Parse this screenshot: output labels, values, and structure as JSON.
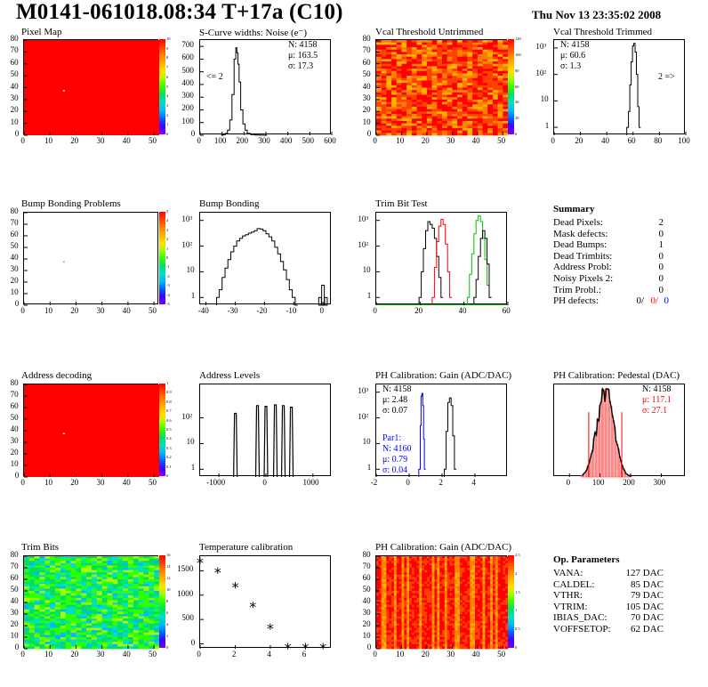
{
  "header": {
    "title": "M0141-061018.08:34 T+17a (C10)",
    "date": "Thu Nov 13 23:35:02 2008"
  },
  "colors": {
    "red": "#ff0000",
    "blue": "#0000ff",
    "green": "#00c000",
    "black": "#000000"
  },
  "palette": [
    "#7a00ff",
    "#4000ff",
    "#0060ff",
    "#00b8ff",
    "#00e0c0",
    "#00e060",
    "#30ff00",
    "#a0ff00",
    "#ffe000",
    "#ffb000",
    "#ff8000",
    "#ff4000",
    "#ff0000"
  ],
  "colorbar_labels": {
    "pixel_map": [
      "10",
      "9",
      "8",
      "7",
      "6",
      "5",
      "4",
      "3",
      "2",
      "1",
      "0"
    ],
    "vcal_untrimmed": [
      "120",
      "100",
      "80",
      "60",
      "40",
      "20",
      "0"
    ],
    "bump_bonding": [
      "5",
      "4",
      "3",
      "2",
      "1",
      "0",
      "-1",
      "-2",
      "-3",
      "-4",
      "-5"
    ],
    "address_decoding": [
      "1",
      "0.9",
      "0.8",
      "0.7",
      "0.6",
      "0.5",
      "0.4",
      "0.3",
      "0.2",
      "0.1",
      "0"
    ],
    "trim_bits": [
      "16",
      "14",
      "12",
      "10",
      "8",
      "6",
      "4",
      "2",
      "0"
    ],
    "ph_gain_map": [
      "2.5",
      "2",
      "1.5",
      "1",
      "0.5",
      "0"
    ]
  },
  "chart_data": [
    {
      "id": "pixel_map",
      "type": "heatmap",
      "title": "Pixel Map",
      "xlim": [
        0,
        52
      ],
      "ylim": [
        0,
        80
      ],
      "xticks": [
        "0",
        "10",
        "20",
        "30",
        "40",
        "50"
      ],
      "yticks": [
        "0",
        "10",
        "20",
        "30",
        "40",
        "50",
        "60",
        "70",
        "80"
      ],
      "fill": "#ff0000",
      "defect_pixel": [
        15,
        38
      ]
    },
    {
      "id": "scurve",
      "type": "line",
      "title": "S-Curve widths: Noise (e⁻)",
      "xlim": [
        0,
        600
      ],
      "ylim": [
        0,
        750
      ],
      "xticks": [
        "0",
        "100",
        "200",
        "300",
        "400",
        "500",
        "600"
      ],
      "yticks": [
        "0",
        "100",
        "200",
        "300",
        "400",
        "500",
        "600",
        "700"
      ],
      "stats": {
        "N": "N: 4158",
        "mu": "μ: 163.5",
        "sigma": "σ: 17.3"
      },
      "annotation": "<= 2",
      "x": [
        100,
        110,
        120,
        130,
        140,
        150,
        160,
        165,
        170,
        175,
        180,
        190,
        200,
        210,
        220,
        240,
        260,
        280,
        300
      ],
      "y": [
        0,
        5,
        15,
        40,
        120,
        320,
        600,
        690,
        650,
        560,
        420,
        200,
        90,
        40,
        15,
        5,
        2,
        1,
        0
      ]
    },
    {
      "id": "vcal_untrimmed",
      "type": "heatmap",
      "title": "Vcal Threshold Untrimmed",
      "xlim": [
        0,
        52
      ],
      "ylim": [
        0,
        80
      ],
      "xticks": [
        "0",
        "10",
        "20",
        "30",
        "40",
        "50"
      ],
      "yticks": [
        "0",
        "10",
        "20",
        "30",
        "40",
        "50",
        "60",
        "70",
        "80"
      ]
    },
    {
      "id": "vcal_trimmed",
      "type": "line",
      "title": "Vcal Threshold Trimmed",
      "xlim": [
        0,
        100
      ],
      "ylim": [
        0.5,
        2000
      ],
      "log_y": true,
      "xticks": [
        "0",
        "20",
        "40",
        "60",
        "80",
        "100"
      ],
      "yticks": [
        "1",
        "10",
        "10²",
        "10³"
      ],
      "stats": {
        "N": "N: 4158",
        "mu": "μ: 60.6",
        "sigma": "σ:  1.3"
      },
      "annotation": "2 =>",
      "x": [
        56,
        57,
        58,
        59,
        60,
        61,
        62,
        63,
        64,
        65
      ],
      "y": [
        1,
        4,
        40,
        300,
        1200,
        1500,
        700,
        100,
        6,
        1
      ]
    },
    {
      "id": "bump_map",
      "type": "heatmap",
      "title": "Bump Bonding Problems",
      "xlim": [
        0,
        52
      ],
      "ylim": [
        0,
        80
      ],
      "xticks": [
        "0",
        "10",
        "20",
        "30",
        "40",
        "50"
      ],
      "yticks": [
        "0",
        "10",
        "20",
        "30",
        "40",
        "50",
        "60",
        "70",
        "80"
      ],
      "defect_pixel": [
        15,
        38
      ]
    },
    {
      "id": "bump_bonding",
      "type": "line",
      "title": "Bump Bonding",
      "xlim": [
        -42,
        3
      ],
      "ylim": [
        0.5,
        2000
      ],
      "log_y": true,
      "xticks": [
        "-40",
        "-30",
        "-20",
        "-10",
        "0"
      ],
      "yticks": [
        "1",
        "10",
        "10²",
        "10³"
      ],
      "x": [
        -36,
        -35,
        -34,
        -33,
        -32,
        -31,
        -30,
        -29,
        -28,
        -27,
        -26,
        -25,
        -24,
        -23,
        -22,
        -21,
        -20,
        -19,
        -18,
        -17,
        -16,
        -15,
        -14,
        -13,
        -12,
        -11,
        -10,
        -9
      ],
      "y": [
        1,
        2,
        6,
        14,
        30,
        60,
        100,
        160,
        200,
        250,
        280,
        320,
        350,
        400,
        480,
        460,
        400,
        300,
        230,
        160,
        90,
        50,
        25,
        12,
        5,
        2,
        1,
        0
      ],
      "extra_bins": [
        {
          "x": -1,
          "y": 1
        },
        {
          "x": 0,
          "y": 3
        },
        {
          "x": 1,
          "y": 1
        }
      ]
    },
    {
      "id": "trim_bit_test",
      "type": "line",
      "title": "Trim Bit Test",
      "xlim": [
        0,
        60
      ],
      "ylim": [
        0.5,
        2000
      ],
      "log_y": true,
      "xticks": [
        "0",
        "20",
        "40",
        "60"
      ],
      "yticks": [
        "1",
        "10",
        "10²",
        "10³"
      ],
      "series": [
        {
          "color": "#000000",
          "x": [
            20,
            21,
            22,
            23,
            24,
            25,
            26,
            27,
            28,
            29,
            30
          ],
          "y": [
            1,
            10,
            80,
            400,
            900,
            700,
            500,
            200,
            40,
            6,
            1
          ]
        },
        {
          "color": "#ff0000",
          "x": [
            26,
            27,
            28,
            29,
            30,
            31,
            32,
            33,
            34
          ],
          "y": [
            1,
            15,
            150,
            600,
            1100,
            700,
            120,
            10,
            1
          ]
        },
        {
          "color": "#00c000",
          "x": [
            42,
            43,
            44,
            45,
            46,
            47,
            48,
            49,
            50,
            51,
            52
          ],
          "y": [
            1,
            8,
            50,
            300,
            1000,
            1500,
            900,
            200,
            30,
            3,
            1
          ]
        },
        {
          "color": "#000000",
          "x": [
            45,
            46,
            47,
            48,
            49,
            50,
            51,
            52
          ],
          "y": [
            1,
            5,
            40,
            200,
            400,
            200,
            20,
            1
          ]
        }
      ]
    },
    {
      "id": "address_decoding",
      "type": "heatmap",
      "title": "Address decoding",
      "xlim": [
        0,
        52
      ],
      "ylim": [
        0,
        80
      ],
      "xticks": [
        "0",
        "10",
        "20",
        "30",
        "40",
        "50"
      ],
      "yticks": [
        "0",
        "10",
        "20",
        "30",
        "40",
        "50",
        "60",
        "70",
        "80"
      ],
      "fill": "#ff0000",
      "defect_pixel": [
        15,
        38
      ]
    },
    {
      "id": "address_levels",
      "type": "line",
      "title": "Address Levels",
      "xlim": [
        -1400,
        1400
      ],
      "ylim": [
        0.5,
        2000
      ],
      "log_y": true,
      "xticks": [
        "-1000",
        "0",
        "1000"
      ],
      "yticks": [
        "1",
        "10",
        "10²"
      ],
      "peaks": [
        -650,
        -180,
        0,
        200,
        370,
        540
      ],
      "peak_heights": [
        150,
        300,
        280,
        320,
        300,
        260
      ]
    },
    {
      "id": "ph_gain",
      "type": "line",
      "title": "PH Calibration: Gain (ADC/DAC)",
      "xlim": [
        -2,
        6
      ],
      "ylim": [
        0.5,
        2000
      ],
      "log_y": true,
      "xticks": [
        "-2",
        "0",
        "2",
        "4"
      ],
      "yticks": [
        "1",
        "10",
        "10²",
        "10³"
      ],
      "stats": {
        "N": "N: 4158",
        "mu": "μ: 2.48",
        "sigma": "σ: 0.07"
      },
      "stats2": {
        "name": "Par1:",
        "N": "N: 4160",
        "mu": "μ: 0.79",
        "sigma": "σ: 0.04"
      },
      "series": [
        {
          "color": "#000000",
          "x": [
            2.2,
            2.3,
            2.4,
            2.5,
            2.6,
            2.7,
            2.8
          ],
          "y": [
            1,
            30,
            400,
            600,
            300,
            20,
            1
          ]
        },
        {
          "color": "#0000ff",
          "x": [
            0.65,
            0.7,
            0.75,
            0.8,
            0.85,
            0.9,
            0.95
          ],
          "y": [
            1,
            50,
            700,
            900,
            300,
            15,
            1
          ]
        }
      ]
    },
    {
      "id": "ph_pedestal",
      "type": "bar",
      "title": "PH Calibration: Pedestal (DAC)",
      "xlim": [
        -50,
        380
      ],
      "ylim": [
        0,
        1.05
      ],
      "xticks": [
        "0",
        "100",
        "200",
        "300"
      ],
      "stats": {
        "N": "N: 4158",
        "mu": "μ: 117.1",
        "sigma": "σ: 27.1"
      },
      "mean": 117,
      "sigma_val": 27,
      "fit_lines": [
        63,
        171
      ]
    },
    {
      "id": "trim_bits_map",
      "type": "heatmap",
      "title": "Trim Bits",
      "xlim": [
        0,
        52
      ],
      "ylim": [
        0,
        80
      ],
      "xticks": [
        "0",
        "10",
        "20",
        "30",
        "40",
        "50"
      ],
      "yticks": [
        "0",
        "10",
        "20",
        "30",
        "40",
        "50",
        "60",
        "70",
        "80"
      ]
    },
    {
      "id": "temperature",
      "type": "scatter",
      "title": "Temperature calibration",
      "xlim": [
        0,
        7.5
      ],
      "ylim": [
        -100,
        1800
      ],
      "xticks": [
        "0",
        "2",
        "4",
        "6"
      ],
      "yticks": [
        "0",
        "500",
        "1000",
        "1500"
      ],
      "x": [
        0,
        1,
        2,
        3,
        4,
        5,
        6,
        7
      ],
      "y": [
        1650,
        1450,
        1150,
        750,
        300,
        -100,
        -100,
        -100
      ]
    },
    {
      "id": "ph_gain_map",
      "type": "heatmap",
      "title": "PH Calibration: Gain (ADC/DAC)",
      "xlim": [
        0,
        52
      ],
      "ylim": [
        0,
        80
      ],
      "xticks": [
        "0",
        "10",
        "20",
        "30",
        "40",
        "50"
      ],
      "yticks": [
        "0",
        "10",
        "20",
        "30",
        "40",
        "50",
        "60",
        "70",
        "80"
      ]
    }
  ],
  "summary": {
    "header": "Summary",
    "rows": [
      {
        "label": "Dead Pixels:",
        "value": "2"
      },
      {
        "label": "Mask defects:",
        "value": "0"
      },
      {
        "label": "Dead Bumps:",
        "value": "1"
      },
      {
        "label": "Dead Trimbits:",
        "value": "0"
      },
      {
        "label": "Address Probl:",
        "value": "0"
      },
      {
        "label": "Noisy Pixels 2:",
        "value": "0"
      },
      {
        "label": "Trim Probl.:",
        "value": "0"
      }
    ],
    "ph_label": "PH defects:",
    "ph_values": [
      "0/",
      "0/",
      "0"
    ]
  },
  "op_params": {
    "header": "Op. Parameters",
    "rows": [
      {
        "label": "VANA:",
        "value": "127 DAC"
      },
      {
        "label": "CALDEL:",
        "value": "85 DAC"
      },
      {
        "label": "VTHR:",
        "value": "79 DAC"
      },
      {
        "label": "VTRIM:",
        "value": "105 DAC"
      },
      {
        "label": "IBIAS_DAC:",
        "value": "70 DAC"
      },
      {
        "label": "VOFFSETOP:",
        "value": "62 DAC"
      }
    ]
  }
}
